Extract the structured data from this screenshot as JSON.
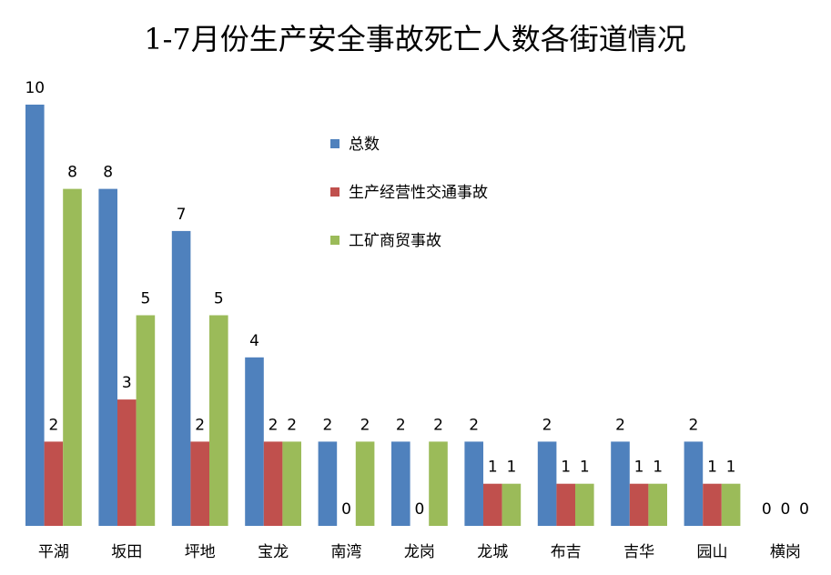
{
  "chart_data": {
    "type": "bar",
    "title": "1-7月份生产安全事故死亡人数各街道情况",
    "xlabel": "",
    "ylabel": "",
    "ylim": [
      0,
      10
    ],
    "grid": false,
    "legend_position": "center-top",
    "categories": [
      "平湖",
      "坂田",
      "坪地",
      "宝龙",
      "南湾",
      "龙岗",
      "龙城",
      "布吉",
      "吉华",
      "园山",
      "横岗"
    ],
    "series": [
      {
        "name": "总数",
        "color": "#4F81BD",
        "values": [
          10,
          8,
          7,
          4,
          2,
          2,
          2,
          2,
          2,
          2,
          0
        ]
      },
      {
        "name": "生产经营性交通事故",
        "color": "#C0504D",
        "values": [
          2,
          3,
          2,
          2,
          0,
          0,
          1,
          1,
          1,
          1,
          0
        ]
      },
      {
        "name": "工矿商贸事故",
        "color": "#9BBB59",
        "values": [
          8,
          5,
          5,
          2,
          2,
          2,
          1,
          1,
          1,
          1,
          0
        ]
      }
    ]
  }
}
